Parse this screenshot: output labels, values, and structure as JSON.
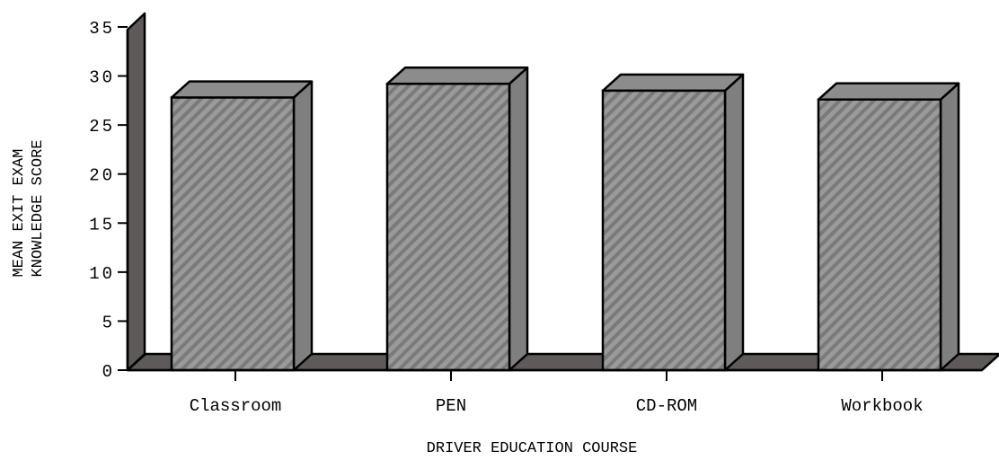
{
  "chart_data": {
    "type": "bar",
    "title": "",
    "xlabel": "DRIVER EDUCATION COURSE",
    "ylabel_lines": [
      "MEAN EXIT EXAM",
      "KNOWLEDGE SCORE"
    ],
    "categories": [
      "Classroom",
      "PEN",
      "CD-ROM",
      "Workbook"
    ],
    "values": [
      27.8,
      29.2,
      28.5,
      27.6
    ],
    "ylim": [
      0,
      35
    ],
    "yticks": [
      0,
      5,
      10,
      15,
      20,
      25,
      30,
      35
    ],
    "ytick_labels": [
      "0",
      "5",
      "10",
      "15",
      "20",
      "25",
      "30",
      "35"
    ],
    "grid": false,
    "legend": "none",
    "style": "3d",
    "colors": {
      "bar_front": "#9a9a9a",
      "bar_hatch": "#7a7a7a",
      "bar_top": "#8c8c8c",
      "bar_side": "#7f7f7f",
      "floor": "#5f5a5a",
      "wall": "#5f5a5a"
    }
  }
}
